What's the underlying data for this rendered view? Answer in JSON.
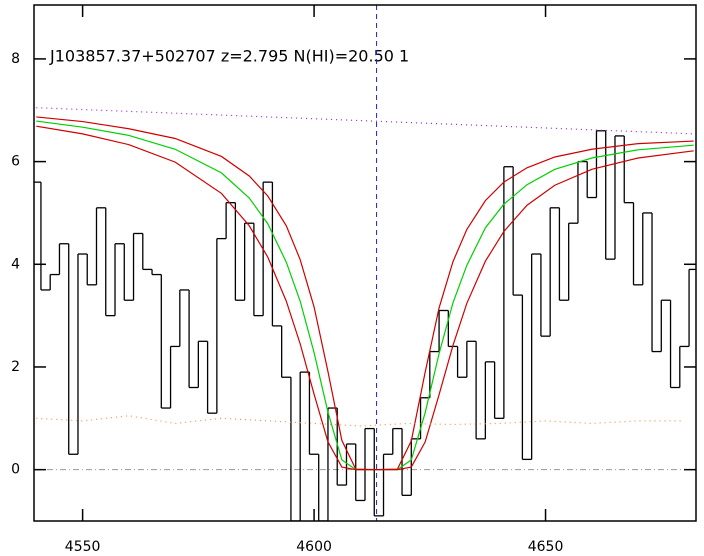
{
  "chart_data": {
    "type": "spectrum",
    "title": "J103857.37+502707 z=2.795 N(HI)=20.50 1",
    "xlim": [
      4539.5,
      4682.5
    ],
    "ylim": [
      -1,
      9.05
    ],
    "xticks": [
      4550,
      4600,
      4650
    ],
    "yticks": [
      0,
      2,
      4,
      6,
      8
    ],
    "vline": 4613.5,
    "zero_line": 0,
    "series": [
      {
        "name": "flux",
        "style": "step",
        "color": "#000000",
        "x": [
          4540,
          4542,
          4544,
          4546,
          4548,
          4550,
          4552,
          4554,
          4556,
          4558,
          4560,
          4562,
          4564,
          4566,
          4568,
          4570,
          4572,
          4574,
          4576,
          4578,
          4580,
          4582,
          4584,
          4586,
          4588,
          4590,
          4592,
          4594,
          4596,
          4598,
          4600,
          4602,
          4604,
          4606,
          4608,
          4610,
          4612,
          4614,
          4616,
          4618,
          4620,
          4622,
          4624,
          4626,
          4628,
          4630,
          4632,
          4634,
          4636,
          4638,
          4640,
          4642,
          4644,
          4646,
          4648,
          4650,
          4652,
          4654,
          4656,
          4658,
          4660,
          4662,
          4664,
          4666,
          4668,
          4670,
          4672,
          4674,
          4676,
          4678,
          4680,
          4682
        ],
        "values": [
          5.6,
          3.5,
          3.8,
          4.4,
          0.3,
          4.2,
          3.6,
          5.1,
          3.0,
          4.4,
          3.3,
          4.6,
          3.9,
          3.8,
          1.2,
          2.4,
          3.5,
          1.6,
          2.5,
          1.1,
          4.5,
          5.2,
          3.3,
          4.8,
          3.0,
          5.6,
          2.8,
          1.8,
          -1.0,
          1.9,
          0.3,
          -1.0,
          1.2,
          -0.3,
          0.5,
          -0.6,
          0.8,
          -0.9,
          0.3,
          0.8,
          -0.5,
          0.6,
          1.4,
          2.3,
          3.1,
          2.4,
          1.8,
          2.5,
          0.6,
          2.1,
          1.0,
          5.9,
          3.4,
          0.2,
          4.2,
          2.6,
          5.1,
          3.3,
          4.8,
          6.0,
          5.3,
          6.6,
          4.1,
          6.5,
          5.2,
          3.6,
          5.0,
          2.3,
          3.3,
          1.6,
          2.4,
          3.9
        ]
      },
      {
        "name": "model-high",
        "style": "line",
        "color": "#d00000",
        "x": [
          4540,
          4550,
          4560,
          4570,
          4580,
          4586,
          4590,
          4594,
          4597,
          4600,
          4603,
          4606,
          4609,
          4613,
          4618,
          4621,
          4624,
          4627,
          4630,
          4633,
          4637,
          4641,
          4646,
          4652,
          4660,
          4670,
          4682
        ],
        "values": [
          6.87,
          6.78,
          6.64,
          6.45,
          6.1,
          5.72,
          5.33,
          4.75,
          4.09,
          3.17,
          1.91,
          0.57,
          0.01,
          0,
          0.01,
          0.56,
          1.9,
          3.15,
          4.05,
          4.68,
          5.24,
          5.6,
          5.88,
          6.09,
          6.24,
          6.35,
          6.4
        ]
      },
      {
        "name": "model",
        "style": "line",
        "color": "#00d000",
        "x": [
          4540,
          4550,
          4560,
          4570,
          4580,
          4586,
          4590,
          4594,
          4597,
          4600,
          4603,
          4606,
          4609,
          4613,
          4618,
          4621,
          4624,
          4627,
          4630,
          4633,
          4637,
          4641,
          4646,
          4652,
          4660,
          4670,
          4682
        ],
        "values": [
          6.79,
          6.67,
          6.51,
          6.24,
          5.78,
          5.29,
          4.79,
          4.04,
          3.28,
          2.28,
          1.12,
          0.19,
          0,
          0,
          0,
          0.19,
          1.11,
          2.26,
          3.25,
          3.98,
          4.71,
          5.17,
          5.55,
          5.85,
          6.07,
          6.23,
          6.32
        ]
      },
      {
        "name": "model-low",
        "style": "line",
        "color": "#d00000",
        "x": [
          4540,
          4550,
          4560,
          4570,
          4580,
          4586,
          4590,
          4594,
          4597,
          4600,
          4603,
          4606,
          4609,
          4613,
          4618,
          4621,
          4624,
          4627,
          4630,
          4633,
          4637,
          4641,
          4646,
          4652,
          4660,
          4670,
          4682
        ],
        "values": [
          6.69,
          6.54,
          6.33,
          5.99,
          5.38,
          4.75,
          4.14,
          3.28,
          2.45,
          1.47,
          0.54,
          0.05,
          0,
          0,
          0,
          0.05,
          0.54,
          1.46,
          2.42,
          3.24,
          4.06,
          4.64,
          5.15,
          5.54,
          5.85,
          6.07,
          6.21
        ]
      },
      {
        "name": "continuum",
        "style": "dotted",
        "color": "#a020f0",
        "x": [
          4540,
          4682
        ],
        "values": [
          7.05,
          6.54
        ]
      },
      {
        "name": "error",
        "style": "dotted",
        "color": "#ff9040",
        "x": [
          4540,
          4550,
          4560,
          4570,
          4580,
          4590,
          4600,
          4610,
          4620,
          4630,
          4640,
          4650,
          4660,
          4670,
          4680
        ],
        "values": [
          1.0,
          0.95,
          1.05,
          0.9,
          1.0,
          0.95,
          0.9,
          0.85,
          0.9,
          0.88,
          0.9,
          0.95,
          0.9,
          0.95,
          0.95
        ]
      }
    ]
  }
}
